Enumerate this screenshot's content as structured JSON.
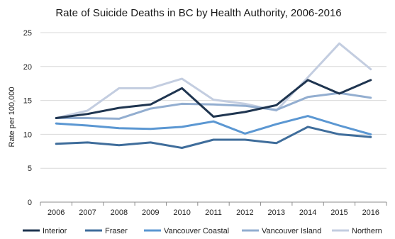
{
  "chart_data": {
    "type": "line",
    "title": "Rate of Suicide Deaths in BC by Health Authority, 2006-2016",
    "xlabel": "",
    "ylabel": "Rate per 100,000",
    "ylim": [
      0,
      25
    ],
    "yticks": [
      "0",
      "5",
      "10",
      "15",
      "20",
      "25"
    ],
    "grid": true,
    "legend_position": "bottom",
    "categories": [
      "2006",
      "2007",
      "2008",
      "2009",
      "2010",
      "2011",
      "2012",
      "2013",
      "2014",
      "2015",
      "2016"
    ],
    "series": [
      {
        "name": "Interior",
        "color": "#1f3550",
        "values": [
          12.4,
          13.0,
          13.9,
          14.4,
          16.8,
          12.6,
          13.3,
          14.3,
          18.0,
          16.0,
          18.0
        ]
      },
      {
        "name": "Fraser",
        "color": "#3f6d9b",
        "values": [
          8.6,
          8.8,
          8.4,
          8.8,
          8.0,
          9.2,
          9.2,
          8.7,
          11.1,
          10.0,
          9.6
        ]
      },
      {
        "name": "Vancouver Coastal",
        "color": "#5b97d2",
        "values": [
          11.6,
          11.3,
          10.9,
          10.8,
          11.1,
          11.9,
          10.1,
          11.5,
          12.7,
          11.3,
          10.0
        ]
      },
      {
        "name": "Vancouver Island",
        "color": "#93aed0",
        "values": [
          12.4,
          12.4,
          12.3,
          13.8,
          14.5,
          14.4,
          14.2,
          13.6,
          15.5,
          16.1,
          15.4
        ]
      },
      {
        "name": "Northern",
        "color": "#c3cde0",
        "values": [
          12.4,
          13.5,
          16.8,
          16.8,
          18.2,
          15.1,
          14.5,
          13.5,
          18.4,
          23.4,
          19.6
        ]
      }
    ]
  }
}
